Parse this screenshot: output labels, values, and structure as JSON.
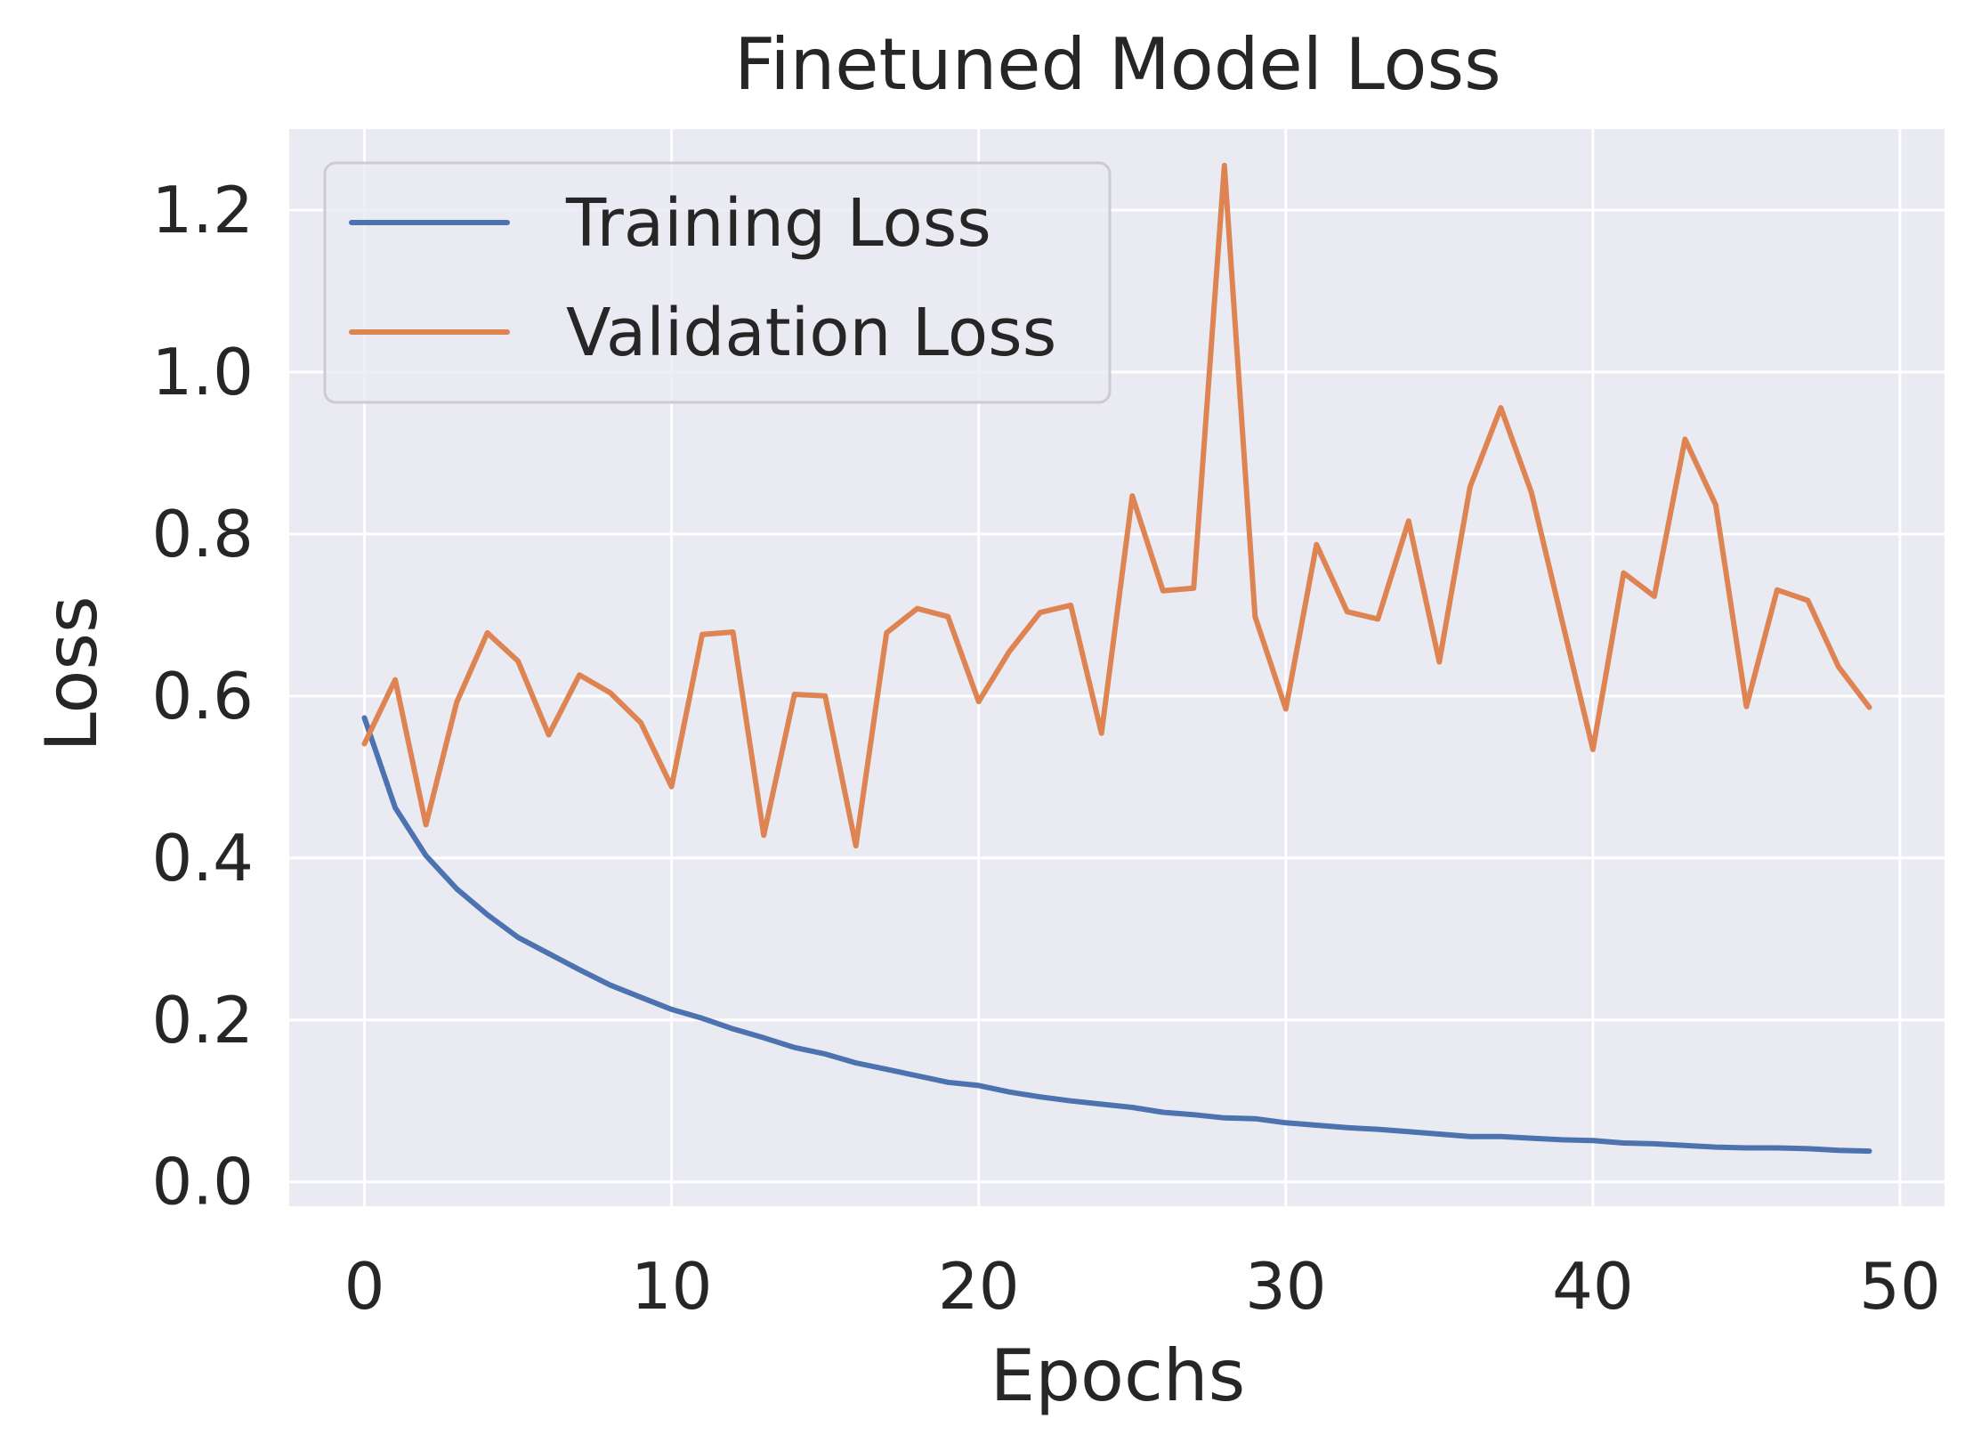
{
  "chart_data": {
    "type": "line",
    "title": "Finetuned Model Loss",
    "xlabel": "Epochs",
    "ylabel": "Loss",
    "xlim": [
      -2.45,
      51.45
    ],
    "ylim": [
      -0.03,
      1.3
    ],
    "xticks": [
      0,
      10,
      20,
      30,
      40,
      50
    ],
    "xtick_labels": [
      "0",
      "10",
      "20",
      "30",
      "40",
      "50"
    ],
    "yticks": [
      0.0,
      0.2,
      0.4,
      0.6,
      0.8,
      1.0,
      1.2
    ],
    "ytick_labels": [
      "0.0",
      "0.2",
      "0.4",
      "0.6",
      "0.8",
      "1.0",
      "1.2"
    ],
    "grid": true,
    "legend_position": "upper-left",
    "x": [
      0,
      1,
      2,
      3,
      4,
      5,
      6,
      7,
      8,
      9,
      10,
      11,
      12,
      13,
      14,
      15,
      16,
      17,
      18,
      19,
      20,
      21,
      22,
      23,
      24,
      25,
      26,
      27,
      28,
      29,
      30,
      31,
      32,
      33,
      34,
      35,
      36,
      37,
      38,
      39,
      40,
      41,
      42,
      43,
      44,
      45,
      46,
      47,
      48,
      49
    ],
    "series": [
      {
        "name": "Training Loss",
        "color": "#4C72B0",
        "values": [
          0.573,
          0.462,
          0.403,
          0.362,
          0.33,
          0.302,
          0.282,
          0.262,
          0.243,
          0.228,
          0.213,
          0.202,
          0.189,
          0.178,
          0.166,
          0.158,
          0.147,
          0.139,
          0.131,
          0.123,
          0.119,
          0.111,
          0.105,
          0.1,
          0.096,
          0.092,
          0.086,
          0.083,
          0.079,
          0.078,
          0.073,
          0.07,
          0.067,
          0.065,
          0.062,
          0.059,
          0.056,
          0.056,
          0.054,
          0.052,
          0.051,
          0.048,
          0.047,
          0.045,
          0.043,
          0.042,
          0.042,
          0.041,
          0.039,
          0.038
        ]
      },
      {
        "name": "Validation Loss",
        "color": "#DD8452",
        "values": [
          0.541,
          0.62,
          0.441,
          0.592,
          0.678,
          0.643,
          0.552,
          0.626,
          0.604,
          0.567,
          0.488,
          0.676,
          0.679,
          0.428,
          0.602,
          0.6,
          0.415,
          0.678,
          0.708,
          0.698,
          0.593,
          0.655,
          0.703,
          0.712,
          0.554,
          0.847,
          0.73,
          0.733,
          1.255,
          0.698,
          0.584,
          0.787,
          0.704,
          0.695,
          0.816,
          0.642,
          0.858,
          0.956,
          0.851,
          0.692,
          0.534,
          0.752,
          0.723,
          0.917,
          0.836,
          0.587,
          0.731,
          0.718,
          0.636,
          0.586
        ]
      }
    ]
  }
}
